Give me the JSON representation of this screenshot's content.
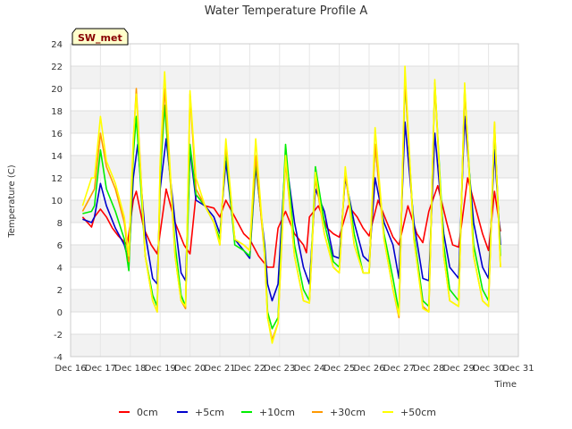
{
  "chart_data": {
    "type": "line",
    "title": "Water Temperature Profile A",
    "xlabel": "Time",
    "ylabel": "Temperature (C)",
    "xlim": [
      16,
      31
    ],
    "ylim": [
      -4,
      24
    ],
    "x_ticks": [
      16,
      17,
      18,
      19,
      20,
      21,
      22,
      23,
      24,
      25,
      26,
      27,
      28,
      29,
      30,
      31
    ],
    "x_tick_labels": [
      "Dec 16",
      "Dec 17",
      "Dec 18",
      "Dec 19",
      "Dec 20",
      "Dec 21",
      "Dec 22",
      "Dec 23",
      "Dec 24",
      "Dec 25",
      "Dec 26",
      "Dec 27",
      "Dec 28",
      "Dec 29",
      "Dec 30",
      "Dec 31"
    ],
    "y_ticks": [
      -4,
      -2,
      0,
      2,
      4,
      6,
      8,
      10,
      12,
      14,
      16,
      18,
      20,
      22,
      24
    ],
    "grid": true,
    "banded_background": true,
    "legend_position": "bottom",
    "annotation": "SW_met",
    "annotation_colors": {
      "fill": "#ffffcc",
      "text": "#880000"
    },
    "series": [
      {
        "name": "0cm",
        "color": "#ff0000",
        "x": [
          16.4,
          16.7,
          16.8,
          17.0,
          17.2,
          17.4,
          17.6,
          17.9,
          18.1,
          18.2,
          18.45,
          18.7,
          18.9,
          19.1,
          19.2,
          19.5,
          19.8,
          20.0,
          20.2,
          20.5,
          20.8,
          21.0,
          21.2,
          21.5,
          21.8,
          22.0,
          22.3,
          22.6,
          22.8,
          22.95,
          23.2,
          23.5,
          23.8,
          23.9,
          24.0,
          24.3,
          24.6,
          24.8,
          25.0,
          25.3,
          25.6,
          25.8,
          26.0,
          26.3,
          26.6,
          26.8,
          27.0,
          27.3,
          27.6,
          27.8,
          28.0,
          28.3,
          28.6,
          28.8,
          29.0,
          29.3,
          29.6,
          29.8,
          30.0,
          30.2,
          30.4
        ],
        "y": [
          8.5,
          7.6,
          8.5,
          9.2,
          8.5,
          7.5,
          6.8,
          6.0,
          10.0,
          10.8,
          7.5,
          6.0,
          5.2,
          9.0,
          11.0,
          8.0,
          6.0,
          5.2,
          10.5,
          9.5,
          9.3,
          8.5,
          10.0,
          8.5,
          7.0,
          6.5,
          5.0,
          4.0,
          4.0,
          7.5,
          9.0,
          7.0,
          6.0,
          5.3,
          8.5,
          9.5,
          7.5,
          7.0,
          6.7,
          9.5,
          8.5,
          7.5,
          6.8,
          10.0,
          8.0,
          6.7,
          6.0,
          9.5,
          7.0,
          6.2,
          9.0,
          11.3,
          8.0,
          6.0,
          5.8,
          12.0,
          9.0,
          7.0,
          5.5,
          10.8,
          7.2
        ]
      },
      {
        "name": "+5cm",
        "color": "#0000cc",
        "x": [
          16.4,
          16.7,
          16.8,
          17.0,
          17.2,
          17.5,
          17.8,
          17.95,
          18.1,
          18.25,
          18.5,
          18.75,
          18.9,
          19.0,
          19.2,
          19.5,
          19.7,
          19.85,
          20.0,
          20.2,
          20.5,
          20.8,
          21.0,
          21.2,
          21.5,
          21.8,
          22.0,
          22.2,
          22.5,
          22.6,
          22.75,
          22.95,
          23.2,
          23.5,
          23.8,
          24.0,
          24.2,
          24.5,
          24.8,
          25.0,
          25.2,
          25.5,
          25.8,
          26.0,
          26.2,
          26.5,
          26.8,
          27.0,
          27.2,
          27.5,
          27.8,
          28.0,
          28.2,
          28.5,
          28.7,
          29.0,
          29.2,
          29.5,
          29.8,
          30.0,
          30.2,
          30.4
        ],
        "y": [
          8.3,
          8.0,
          8.5,
          11.5,
          9.5,
          7.5,
          6.0,
          4.5,
          12.0,
          15.0,
          7.0,
          3.0,
          2.5,
          11.0,
          15.5,
          8.0,
          3.5,
          2.8,
          14.5,
          10.0,
          9.5,
          8.5,
          7.0,
          13.5,
          6.5,
          5.5,
          4.8,
          13.0,
          6.0,
          2.5,
          1.0,
          2.5,
          14.0,
          8.0,
          4.0,
          2.5,
          11.0,
          9.0,
          5.0,
          4.8,
          12.0,
          8.0,
          5.0,
          4.5,
          12.0,
          8.0,
          6.0,
          3.0,
          17.0,
          8.0,
          3.0,
          2.8,
          16.0,
          7.0,
          4.0,
          3.0,
          17.5,
          8.0,
          4.0,
          3.0,
          14.5,
          6.0
        ]
      },
      {
        "name": "+10cm",
        "color": "#00ee00",
        "x": [
          16.4,
          16.7,
          16.8,
          17.0,
          17.2,
          17.5,
          17.8,
          17.95,
          18.1,
          18.2,
          18.5,
          18.75,
          18.9,
          19.0,
          19.15,
          19.5,
          19.7,
          19.85,
          20.0,
          20.2,
          20.5,
          20.8,
          21.0,
          21.2,
          21.5,
          21.8,
          22.0,
          22.2,
          22.5,
          22.6,
          22.75,
          22.95,
          23.2,
          23.5,
          23.8,
          24.0,
          24.2,
          24.5,
          24.8,
          25.0,
          25.2,
          25.5,
          25.8,
          26.0,
          26.2,
          26.5,
          26.8,
          27.0,
          27.2,
          27.5,
          27.8,
          28.0,
          28.2,
          28.5,
          28.7,
          29.0,
          29.2,
          29.5,
          29.8,
          30.0,
          30.2,
          30.4
        ],
        "y": [
          8.8,
          9.0,
          9.5,
          14.5,
          11.0,
          9.0,
          6.5,
          3.7,
          14.0,
          17.5,
          5.0,
          1.5,
          0.5,
          12.0,
          18.5,
          6.0,
          1.5,
          0.5,
          15.0,
          10.5,
          9.5,
          8.0,
          6.5,
          14.5,
          6.0,
          5.5,
          5.0,
          13.5,
          5.5,
          0.0,
          -1.5,
          -0.5,
          15.0,
          6.0,
          2.0,
          1.0,
          13.0,
          8.0,
          4.5,
          4.0,
          12.5,
          7.0,
          3.5,
          3.5,
          15.0,
          7.0,
          3.0,
          0.0,
          20.8,
          7.0,
          1.0,
          0.5,
          20.5,
          6.0,
          2.0,
          1.0,
          20.0,
          6.0,
          2.0,
          1.0,
          16.5,
          5.0
        ]
      },
      {
        "name": "+30cm",
        "color": "#ff9900",
        "x": [
          16.4,
          16.7,
          16.8,
          17.0,
          17.2,
          17.5,
          17.8,
          17.95,
          18.1,
          18.2,
          18.5,
          18.75,
          18.9,
          19.0,
          19.15,
          19.5,
          19.7,
          19.85,
          20.0,
          20.2,
          20.5,
          20.8,
          21.0,
          21.2,
          21.5,
          21.8,
          22.0,
          22.2,
          22.5,
          22.6,
          22.75,
          22.95,
          23.2,
          23.5,
          23.8,
          24.0,
          24.2,
          24.5,
          24.8,
          25.0,
          25.2,
          25.5,
          25.8,
          26.0,
          26.2,
          26.5,
          26.8,
          27.0,
          27.2,
          27.5,
          27.8,
          28.0,
          28.2,
          28.5,
          28.7,
          29.0,
          29.2,
          29.5,
          29.8,
          30.0,
          30.2,
          30.4
        ],
        "y": [
          9.0,
          10.5,
          11.0,
          16.0,
          13.0,
          11.0,
          8.0,
          4.5,
          15.0,
          20.0,
          5.0,
          1.0,
          0.0,
          13.0,
          20.0,
          5.0,
          1.0,
          0.3,
          19.5,
          11.0,
          9.5,
          8.0,
          6.0,
          15.0,
          6.5,
          6.0,
          5.5,
          14.0,
          5.0,
          -0.5,
          -2.5,
          -1.0,
          13.5,
          5.0,
          1.0,
          0.8,
          12.0,
          7.0,
          4.0,
          3.5,
          12.5,
          6.0,
          3.5,
          3.5,
          15.0,
          6.5,
          2.0,
          -0.5,
          21.0,
          6.5,
          0.5,
          0.0,
          20.5,
          5.0,
          1.0,
          0.5,
          20.0,
          5.0,
          1.0,
          0.5,
          17.0,
          4.0
        ]
      },
      {
        "name": "+50cm",
        "color": "#ffff00",
        "x": [
          16.4,
          16.7,
          16.8,
          17.0,
          17.2,
          17.5,
          17.8,
          17.95,
          18.1,
          18.2,
          18.5,
          18.75,
          18.9,
          19.0,
          19.15,
          19.5,
          19.7,
          19.85,
          20.0,
          20.2,
          20.5,
          20.8,
          21.0,
          21.2,
          21.5,
          21.8,
          22.0,
          22.2,
          22.5,
          22.6,
          22.75,
          22.95,
          23.2,
          23.5,
          23.8,
          24.0,
          24.2,
          24.5,
          24.8,
          25.0,
          25.2,
          25.5,
          25.8,
          26.0,
          26.2,
          26.5,
          26.8,
          27.0,
          27.2,
          27.5,
          27.8,
          28.0,
          28.2,
          28.5,
          28.7,
          29.0,
          29.2,
          29.5,
          29.8,
          30.0,
          30.2,
          30.4
        ],
        "y": [
          9.5,
          12.0,
          12.0,
          17.5,
          13.5,
          11.5,
          8.5,
          5.0,
          15.5,
          19.5,
          5.0,
          1.0,
          0.0,
          13.5,
          21.5,
          5.0,
          1.0,
          0.5,
          19.8,
          12.0,
          9.5,
          8.0,
          6.0,
          15.5,
          6.5,
          6.0,
          5.5,
          15.5,
          5.0,
          -0.5,
          -2.8,
          -1.0,
          14.0,
          5.0,
          1.0,
          0.8,
          12.5,
          7.0,
          4.0,
          3.5,
          13.0,
          6.0,
          3.5,
          3.5,
          16.5,
          6.5,
          2.0,
          -0.3,
          22.0,
          6.5,
          0.3,
          0.0,
          20.8,
          5.0,
          1.0,
          0.5,
          20.5,
          5.0,
          1.0,
          0.5,
          17.0,
          4.0
        ]
      }
    ]
  }
}
